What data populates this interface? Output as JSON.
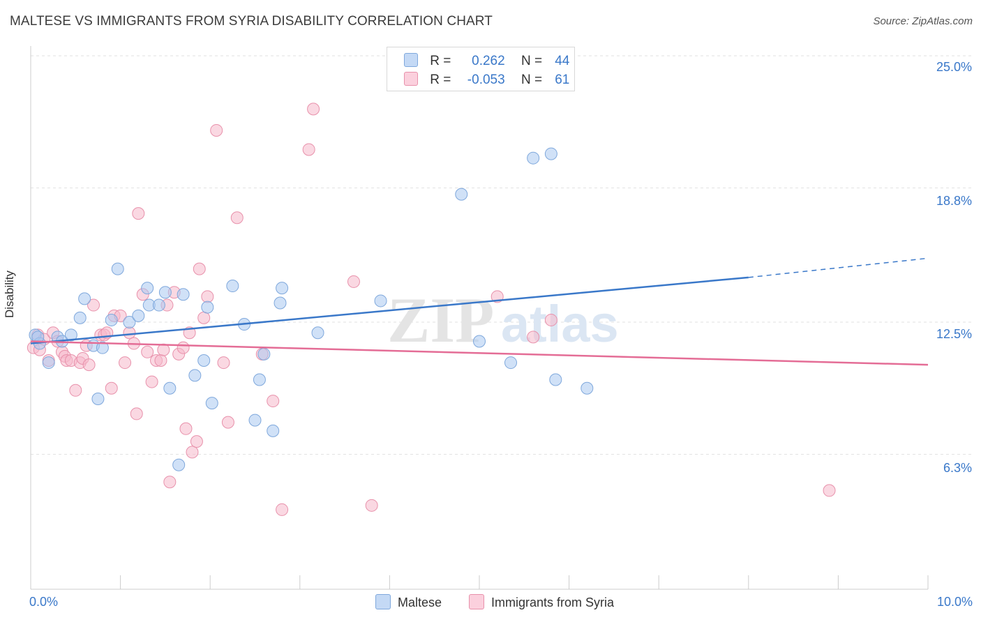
{
  "title": "MALTESE VS IMMIGRANTS FROM SYRIA DISABILITY CORRELATION CHART",
  "source": "Source: ZipAtlas.com",
  "watermark": {
    "zip": "ZIP",
    "atlas": "atlas"
  },
  "legend": {
    "rows": [
      {
        "r_label": "R =",
        "r_value": "0.262",
        "n_label": "N =",
        "n_value": "44",
        "color": "#a9c8f0"
      },
      {
        "r_label": "R =",
        "r_value": "-0.053",
        "n_label": "N =",
        "n_value": "61",
        "color": "#f6b8cb"
      }
    ]
  },
  "bottom_legend": [
    {
      "label": "Maltese",
      "color": "#a9c8f0"
    },
    {
      "label": "Immigrants from Syria",
      "color": "#f6b8cb"
    }
  ],
  "colors": {
    "blue_fill": "#a9c8f0",
    "blue_stroke": "#7fa8dc",
    "blue_line": "#3a78c9",
    "pink_fill": "#f6b8cb",
    "pink_stroke": "#e891ab",
    "pink_line": "#e46d96",
    "grid": "#e2e2e2",
    "tick_label": "#3a78c9"
  },
  "chart_data": {
    "type": "scatter",
    "title": "MALTESE VS IMMIGRANTS FROM SYRIA DISABILITY CORRELATION CHART",
    "xlabel": "",
    "ylabel": "Disability",
    "xlim": [
      0,
      10
    ],
    "ylim": [
      0,
      26
    ],
    "x_tick_labels": [
      {
        "value": 0,
        "label": "0.0%"
      },
      {
        "value": 10,
        "label": "10.0%"
      }
    ],
    "y_tick_labels": [
      {
        "value": 6.3,
        "label": "6.3%"
      },
      {
        "value": 12.5,
        "label": "12.5%"
      },
      {
        "value": 18.8,
        "label": "18.8%"
      },
      {
        "value": 25.0,
        "label": "25.0%"
      }
    ],
    "grid": true,
    "series": [
      {
        "name": "Maltese",
        "r": 0.262,
        "n": 44,
        "points": [
          [
            0.05,
            11.9
          ],
          [
            0.1,
            11.5
          ],
          [
            0.2,
            10.6
          ],
          [
            0.3,
            11.8
          ],
          [
            0.35,
            11.6
          ],
          [
            0.45,
            11.9
          ],
          [
            0.55,
            12.7
          ],
          [
            0.6,
            13.6
          ],
          [
            0.7,
            11.4
          ],
          [
            0.75,
            8.9
          ],
          [
            0.8,
            11.3
          ],
          [
            0.9,
            12.6
          ],
          [
            0.97,
            15.0
          ],
          [
            1.1,
            12.5
          ],
          [
            1.2,
            12.8
          ],
          [
            1.3,
            14.1
          ],
          [
            1.32,
            13.3
          ],
          [
            1.43,
            13.3
          ],
          [
            1.5,
            13.9
          ],
          [
            1.55,
            9.4
          ],
          [
            1.65,
            5.8
          ],
          [
            1.7,
            13.8
          ],
          [
            1.83,
            10.0
          ],
          [
            1.93,
            10.7
          ],
          [
            1.97,
            13.2
          ],
          [
            2.02,
            8.7
          ],
          [
            2.25,
            14.2
          ],
          [
            2.38,
            12.4
          ],
          [
            2.5,
            7.9
          ],
          [
            2.55,
            9.8
          ],
          [
            2.6,
            11.0
          ],
          [
            2.7,
            7.4
          ],
          [
            2.78,
            13.4
          ],
          [
            2.8,
            14.1
          ],
          [
            3.2,
            12.0
          ],
          [
            3.9,
            13.5
          ],
          [
            4.8,
            18.5
          ],
          [
            5.0,
            11.6
          ],
          [
            5.35,
            10.6
          ],
          [
            5.6,
            20.2
          ],
          [
            5.8,
            20.4
          ],
          [
            5.85,
            9.8
          ],
          [
            6.2,
            9.4
          ],
          [
            0.08,
            11.8
          ]
        ],
        "trend": {
          "x0": 0,
          "y0": 11.5,
          "x1": 8.0,
          "y1": 14.6,
          "dash_to_x": 10.0,
          "dash_to_y": 15.5
        }
      },
      {
        "name": "Immigrants from Syria",
        "r": -0.053,
        "n": 61,
        "points": [
          [
            0.03,
            11.3
          ],
          [
            0.08,
            11.9
          ],
          [
            0.1,
            11.2
          ],
          [
            0.15,
            11.7
          ],
          [
            0.2,
            10.7
          ],
          [
            0.25,
            12.0
          ],
          [
            0.3,
            11.6
          ],
          [
            0.35,
            11.1
          ],
          [
            0.38,
            10.9
          ],
          [
            0.4,
            10.7
          ],
          [
            0.45,
            10.7
          ],
          [
            0.5,
            9.3
          ],
          [
            0.55,
            10.6
          ],
          [
            0.58,
            10.8
          ],
          [
            0.62,
            11.4
          ],
          [
            0.65,
            10.5
          ],
          [
            0.7,
            13.3
          ],
          [
            0.78,
            11.9
          ],
          [
            0.82,
            11.9
          ],
          [
            0.85,
            12.0
          ],
          [
            0.9,
            9.4
          ],
          [
            0.93,
            12.8
          ],
          [
            1.0,
            12.8
          ],
          [
            1.05,
            10.6
          ],
          [
            1.1,
            12.0
          ],
          [
            1.15,
            11.5
          ],
          [
            1.18,
            8.2
          ],
          [
            1.2,
            17.6
          ],
          [
            1.25,
            13.8
          ],
          [
            1.3,
            11.1
          ],
          [
            1.35,
            9.7
          ],
          [
            1.4,
            10.7
          ],
          [
            1.45,
            10.7
          ],
          [
            1.48,
            11.2
          ],
          [
            1.52,
            13.3
          ],
          [
            1.55,
            5.0
          ],
          [
            1.6,
            13.9
          ],
          [
            1.65,
            11.0
          ],
          [
            1.7,
            11.3
          ],
          [
            1.73,
            7.5
          ],
          [
            1.77,
            12.0
          ],
          [
            1.8,
            6.4
          ],
          [
            1.85,
            6.9
          ],
          [
            1.88,
            15.0
          ],
          [
            1.93,
            12.7
          ],
          [
            1.97,
            13.7
          ],
          [
            2.07,
            21.5
          ],
          [
            2.15,
            10.6
          ],
          [
            2.2,
            7.8
          ],
          [
            2.3,
            17.4
          ],
          [
            2.58,
            11.0
          ],
          [
            2.7,
            8.8
          ],
          [
            2.8,
            3.7
          ],
          [
            3.1,
            20.6
          ],
          [
            3.15,
            22.5
          ],
          [
            3.6,
            14.4
          ],
          [
            3.8,
            3.9
          ],
          [
            5.2,
            13.7
          ],
          [
            5.6,
            11.8
          ],
          [
            5.8,
            12.6
          ],
          [
            8.9,
            4.6
          ]
        ],
        "trend": {
          "x0": 0,
          "y0": 11.6,
          "x1": 10.0,
          "y1": 10.5
        }
      }
    ]
  }
}
